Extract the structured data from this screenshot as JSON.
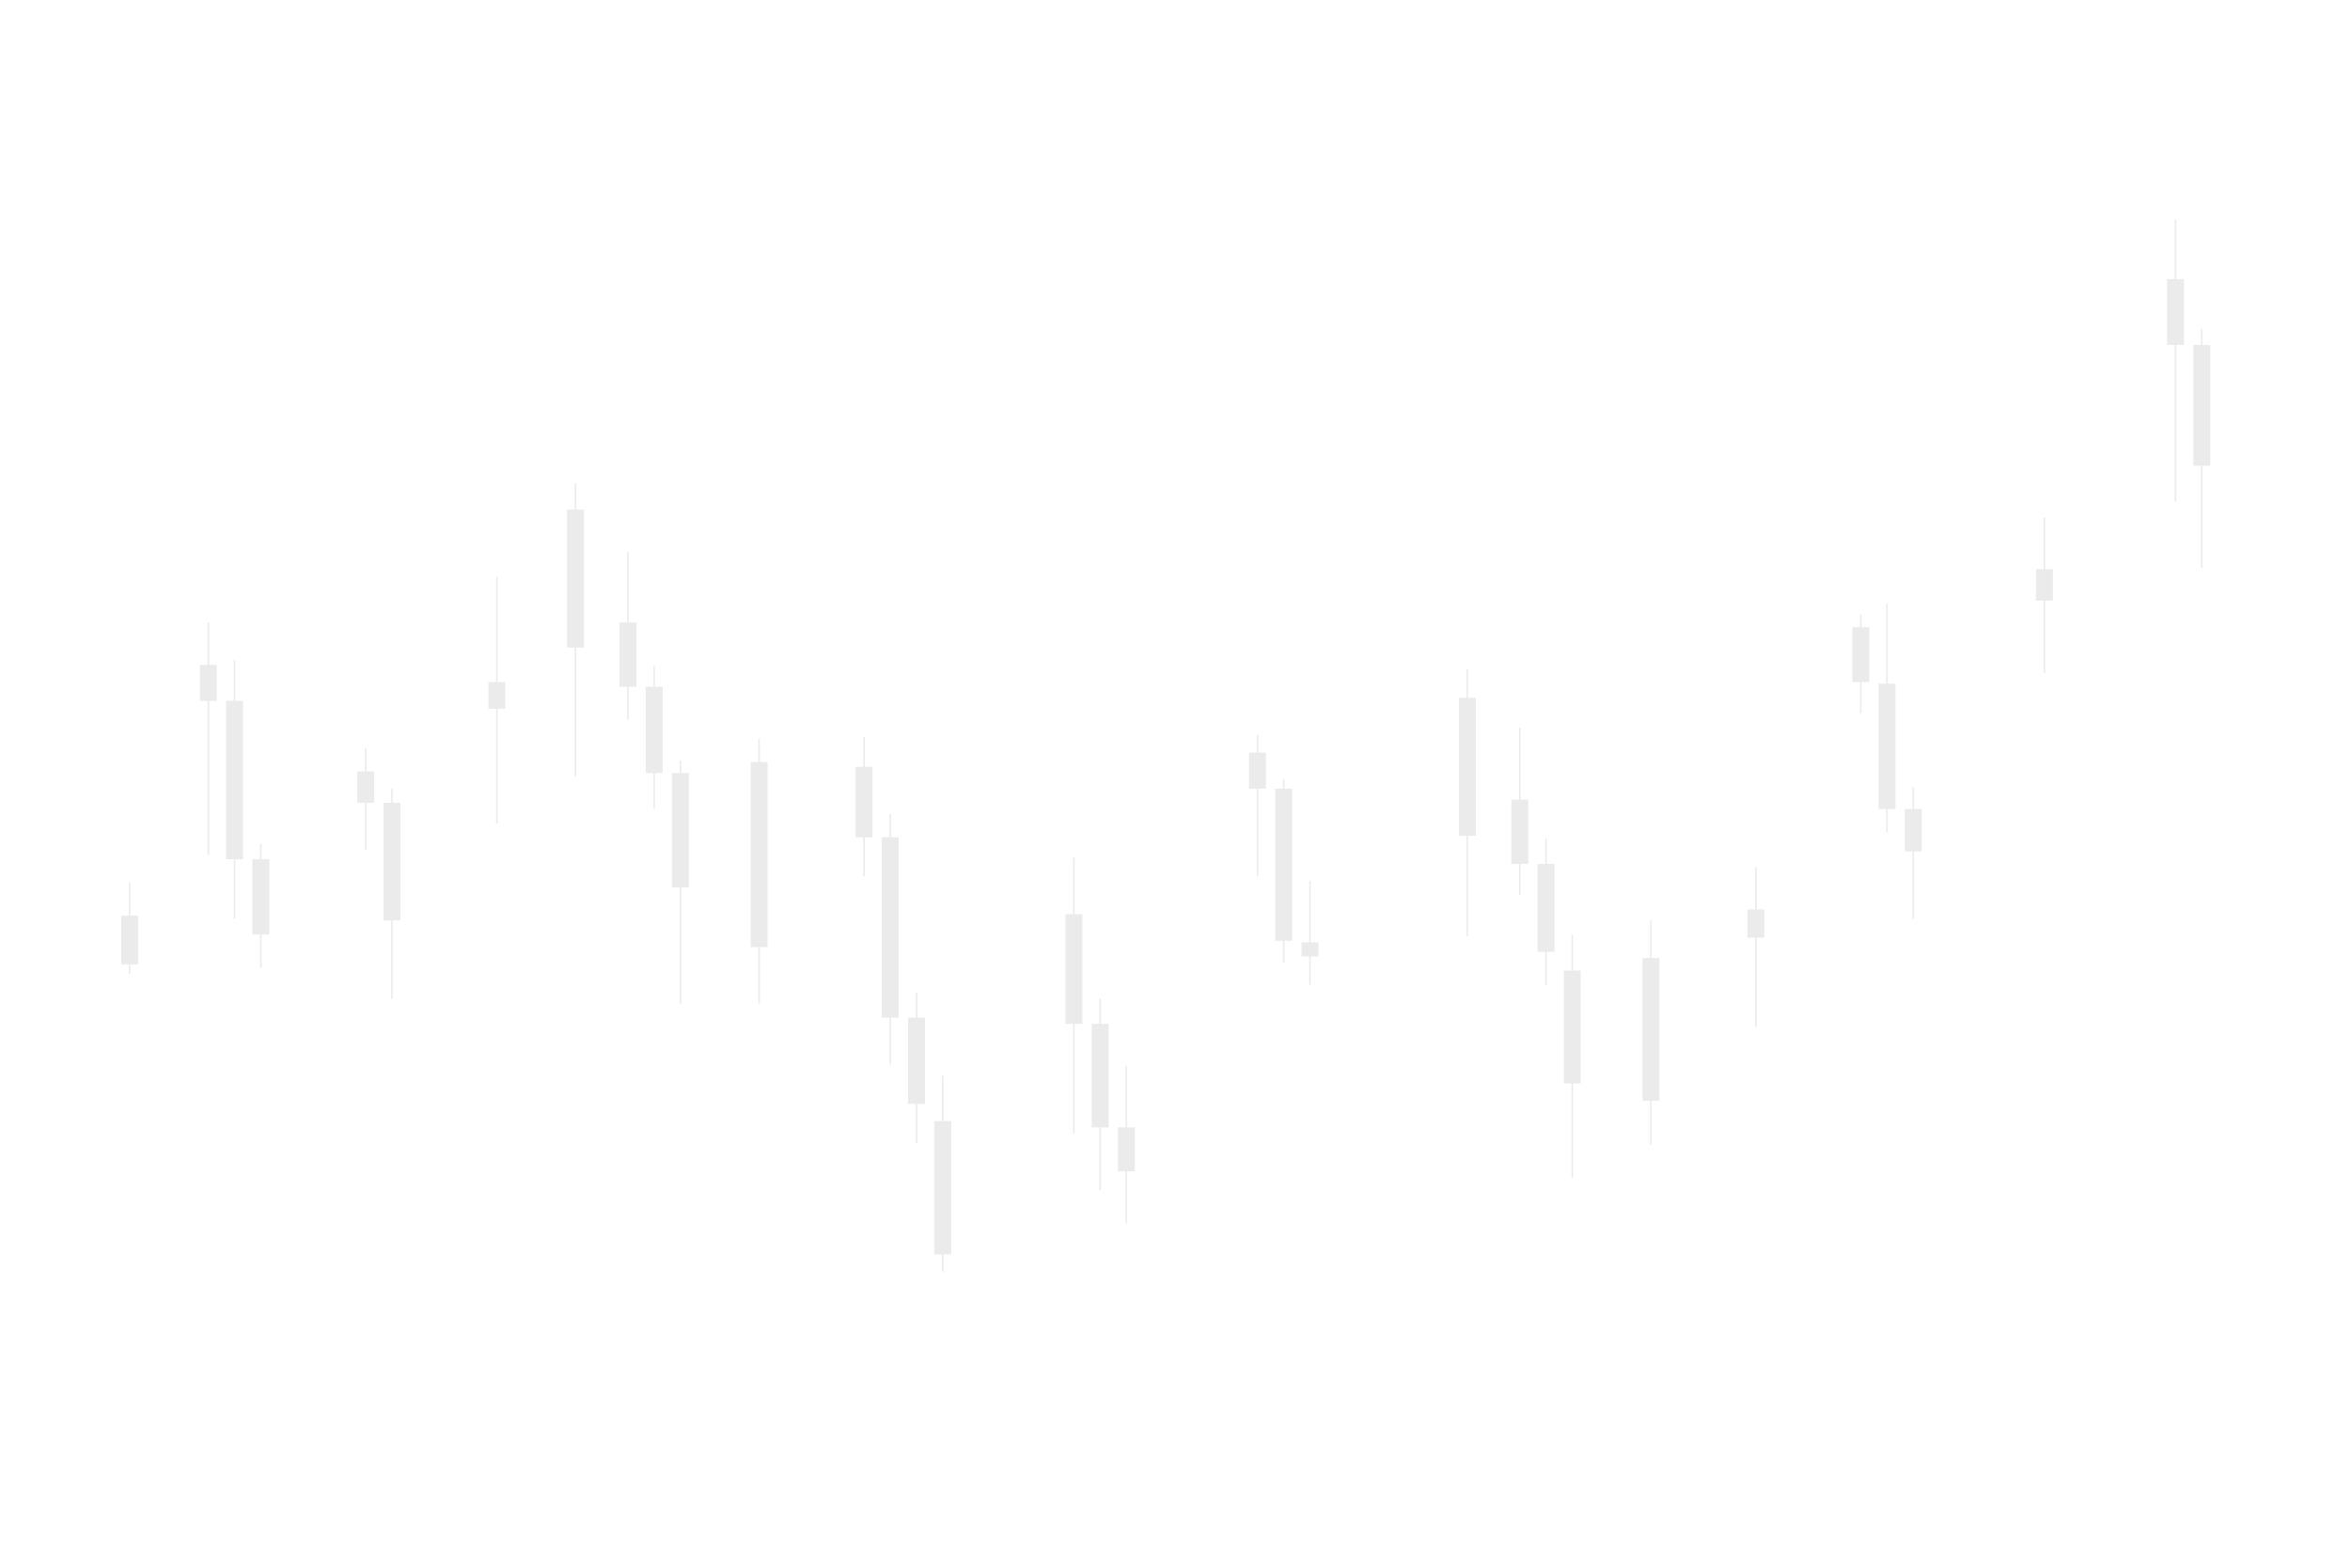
{
  "chart_data": {
    "type": "candlestick",
    "title": "",
    "xlabel": "",
    "ylabel": "",
    "grid": false,
    "legend": "none",
    "colors": {
      "candle": "#ebebeb",
      "background": "#ffffff"
    },
    "x_range": [
      0,
      52
    ],
    "y_range": [
      0,
      1000
    ],
    "candles": [
      {
        "x": 1,
        "open": 385,
        "close": 416,
        "high": 437,
        "low": 379
      },
      {
        "x": 4,
        "open": 553,
        "close": 576,
        "high": 603,
        "low": 455
      },
      {
        "x": 5,
        "open": 553,
        "close": 452,
        "high": 579,
        "low": 414
      },
      {
        "x": 6,
        "open": 452,
        "close": 404,
        "high": 462,
        "low": 383
      },
      {
        "x": 10,
        "open": 488,
        "close": 508,
        "high": 523,
        "low": 458
      },
      {
        "x": 11,
        "open": 488,
        "close": 413,
        "high": 497,
        "low": 363
      },
      {
        "x": 15,
        "open": 548,
        "close": 565,
        "high": 632,
        "low": 475
      },
      {
        "x": 18,
        "open": 587,
        "close": 675,
        "high": 692,
        "low": 505
      },
      {
        "x": 20,
        "open": 562,
        "close": 603,
        "high": 648,
        "low": 541
      },
      {
        "x": 21,
        "open": 562,
        "close": 507,
        "high": 575,
        "low": 484
      },
      {
        "x": 22,
        "open": 507,
        "close": 434,
        "high": 515,
        "low": 360
      },
      {
        "x": 25,
        "open": 396,
        "close": 514,
        "high": 529,
        "low": 360
      },
      {
        "x": 29,
        "open": 466,
        "close": 511,
        "high": 530,
        "low": 441
      },
      {
        "x": 30,
        "open": 466,
        "close": 351,
        "high": 481,
        "low": 321
      },
      {
        "x": 31,
        "open": 351,
        "close": 296,
        "high": 367,
        "low": 271
      },
      {
        "x": 32,
        "open": 285,
        "close": 200,
        "high": 314,
        "low": 189
      },
      {
        "x": 37,
        "open": 347,
        "close": 417,
        "high": 453,
        "low": 277
      },
      {
        "x": 38,
        "open": 347,
        "close": 281,
        "high": 363,
        "low": 241
      },
      {
        "x": 39,
        "open": 253,
        "close": 281,
        "high": 320,
        "low": 220
      },
      {
        "x": 44,
        "open": 497,
        "close": 520,
        "high": 531,
        "low": 441
      },
      {
        "x": 45,
        "open": 497,
        "close": 400,
        "high": 503,
        "low": 386
      },
      {
        "x": 46,
        "open": 390,
        "close": 399,
        "high": 438,
        "low": 372
      },
      {
        "x": 52,
        "open": 467,
        "close": 555,
        "high": 573,
        "low": 403
      },
      {
        "x": 54,
        "open": 449,
        "close": 490,
        "high": 536,
        "low": 429
      },
      {
        "x": 55,
        "open": 449,
        "close": 393,
        "high": 465,
        "low": 372
      },
      {
        "x": 56,
        "open": 381,
        "close": 309,
        "high": 404,
        "low": 249
      },
      {
        "x": 59,
        "open": 298,
        "close": 389,
        "high": 413,
        "low": 270
      },
      {
        "x": 63,
        "open": 402,
        "close": 420,
        "high": 447,
        "low": 345
      },
      {
        "x": 67,
        "open": 565,
        "close": 600,
        "high": 608,
        "low": 545
      },
      {
        "x": 68,
        "open": 484,
        "close": 564,
        "high": 615,
        "low": 469
      },
      {
        "x": 69,
        "open": 457,
        "close": 484,
        "high": 498,
        "low": 414
      },
      {
        "x": 74,
        "open": 617,
        "close": 637,
        "high": 670,
        "low": 571
      },
      {
        "x": 79,
        "open": 780,
        "close": 822,
        "high": 860,
        "low": 680
      },
      {
        "x": 80,
        "open": 703,
        "close": 780,
        "high": 790,
        "low": 638
      }
    ]
  }
}
